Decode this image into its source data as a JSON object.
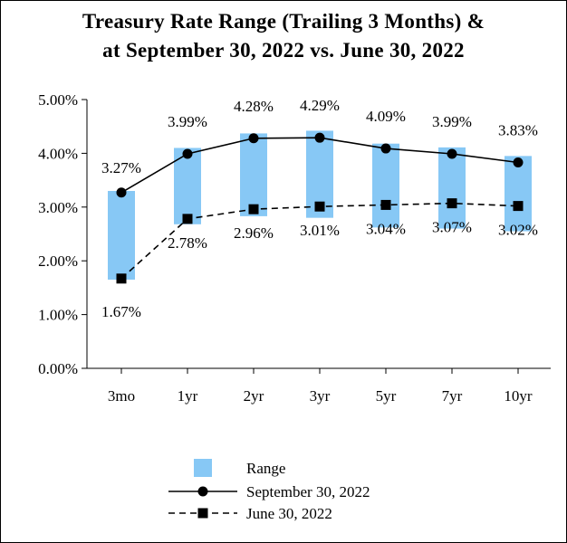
{
  "chart_data": {
    "type": "bar",
    "title": [
      "Treasury Rate Range (Trailing 3 Months) &",
      "at September 30, 2022 vs. June 30, 2022"
    ],
    "categories": [
      "3mo",
      "1yr",
      "2yr",
      "3yr",
      "5yr",
      "7yr",
      "10yr"
    ],
    "ylim": [
      0,
      5
    ],
    "yticks": [
      0,
      1,
      2,
      3,
      4,
      5
    ],
    "ytick_labels": [
      "0.00%",
      "1.00%",
      "2.00%",
      "3.00%",
      "4.00%",
      "5.00%"
    ],
    "range": {
      "name": "Range",
      "color": "#87c8f5",
      "low": [
        1.65,
        2.68,
        2.83,
        2.8,
        2.62,
        2.6,
        2.55
      ],
      "high": [
        3.3,
        4.1,
        4.37,
        4.42,
        4.18,
        4.11,
        3.95
      ]
    },
    "series": [
      {
        "name": "September 30, 2022",
        "style": "solid",
        "marker": "circle",
        "values": [
          3.27,
          3.99,
          4.28,
          4.29,
          4.09,
          3.99,
          3.83
        ],
        "labels": [
          "3.27%",
          "3.99%",
          "4.28%",
          "4.29%",
          "4.09%",
          "3.99%",
          "3.83%"
        ]
      },
      {
        "name": "June 30, 2022",
        "style": "dashed",
        "marker": "square",
        "values": [
          1.67,
          2.78,
          2.96,
          3.01,
          3.04,
          3.07,
          3.02
        ],
        "labels": [
          "1.67%",
          "2.78%",
          "2.96%",
          "3.01%",
          "3.04%",
          "3.07%",
          "3.02%"
        ]
      }
    ],
    "legend": [
      "Range",
      "September 30, 2022",
      "June 30, 2022"
    ],
    "legend_position": "bottom"
  }
}
